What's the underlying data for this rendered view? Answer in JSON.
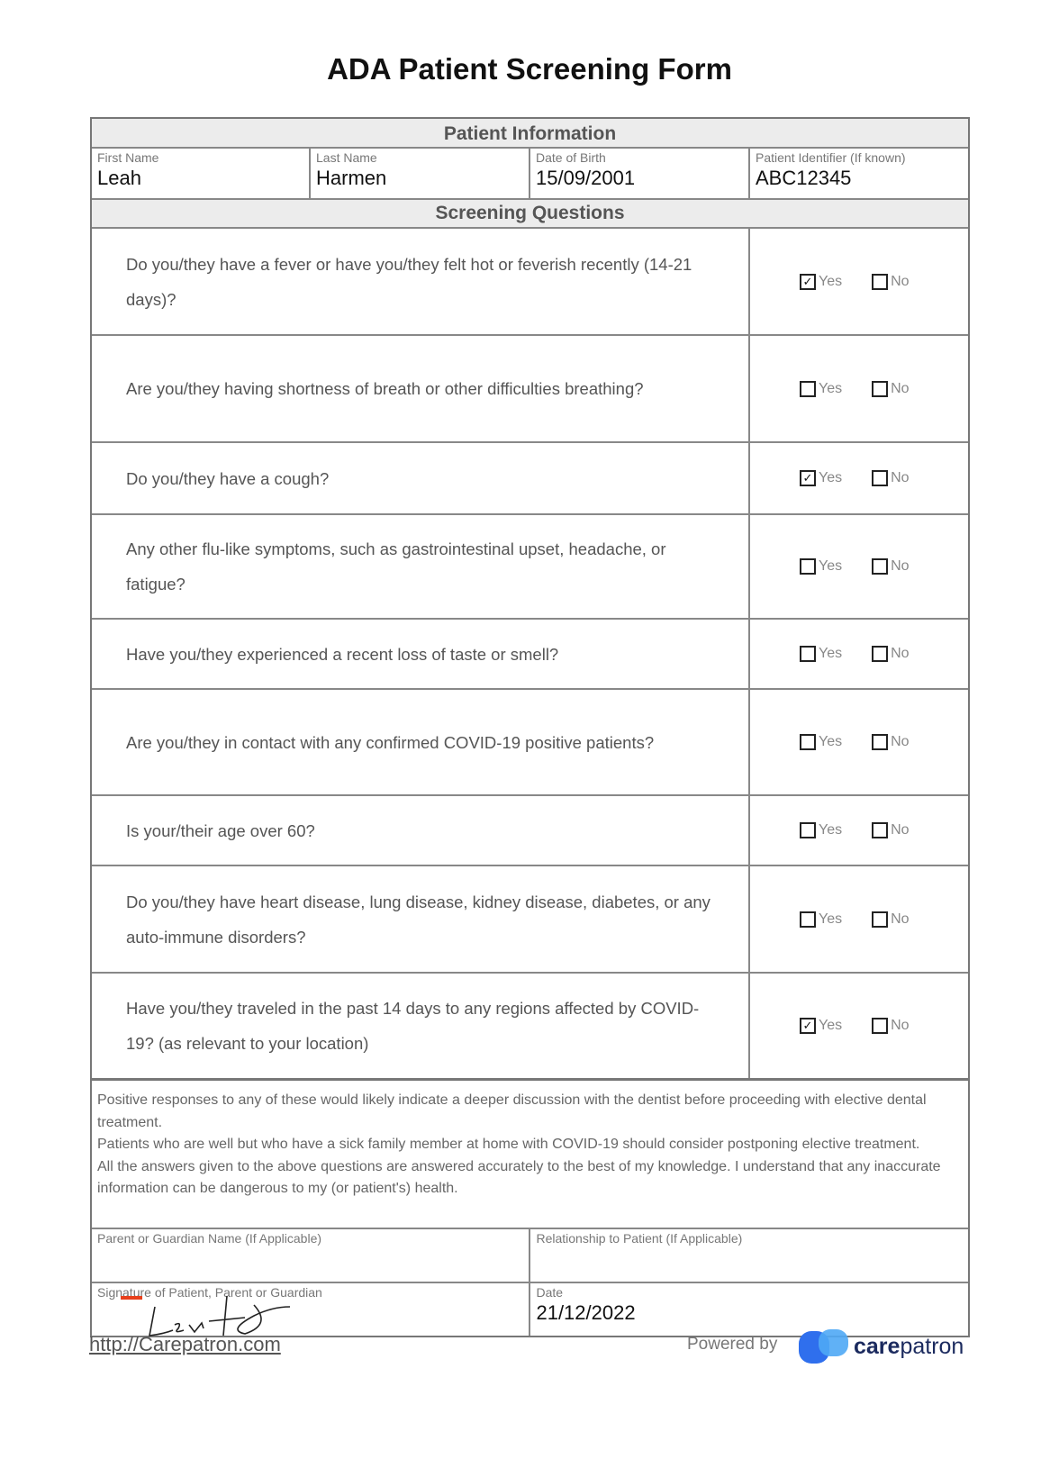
{
  "title": "ADA Patient Screening Form",
  "patient_information": {
    "heading": "Patient Information",
    "fields": [
      {
        "label": "First Name",
        "value": "Leah"
      },
      {
        "label": "Last Name",
        "value": "Harmen"
      },
      {
        "label": "Date of Birth",
        "value": "15/09/2001"
      },
      {
        "label": "Patient Identifier (If known)",
        "value": "ABC12345"
      }
    ]
  },
  "screening": {
    "heading": "Screening Questions",
    "yes_label": "Yes",
    "no_label": "No",
    "questions": [
      {
        "text": "Do you/they have a fever or have you/they felt hot or feverish recently (14-21 days)?",
        "yes": true,
        "no": false
      },
      {
        "text": "Are you/they having shortness of breath or other difficulties breathing?",
        "yes": false,
        "no": false
      },
      {
        "text": "Do you/they have a cough?",
        "yes": true,
        "no": false
      },
      {
        "text": "Any other flu-like symptoms, such as gastrointestinal upset, headache, or fatigue?",
        "yes": false,
        "no": false
      },
      {
        "text": "Have you/they experienced a recent loss of taste or smell?",
        "yes": false,
        "no": false
      },
      {
        "text": "Are you/they in contact with any confirmed COVID-19 positive patients?",
        "yes": false,
        "no": false
      },
      {
        "text": "Is your/their age over 60?",
        "yes": false,
        "no": false
      },
      {
        "text": "Do you/they have heart disease, lung disease, kidney disease, diabetes, or any auto-immune disorders?",
        "yes": false,
        "no": false
      },
      {
        "text": "Have you/they traveled in the past 14 days to any regions affected by COVID-19? (as relevant to your location)",
        "yes": true,
        "no": false
      }
    ]
  },
  "notes": [
    "Positive responses to any of these would likely indicate a deeper discussion with the dentist before proceeding with elective dental treatment.",
    "Patients who are well but who have a sick family member at home with COVID-19 should consider postponing elective treatment.",
    "All the answers given to the above questions are answered accurately to the best of my knowledge. I understand that any inaccurate information can be dangerous to my (or patient's) health."
  ],
  "guardian": {
    "name_label": "Parent or Guardian Name (If Applicable)",
    "name_value": "",
    "relationship_label": "Relationship to Patient (If Applicable)",
    "relationship_value": ""
  },
  "signature": {
    "label": "Signature of Patient, Parent or Guardian",
    "date_label": "Date",
    "date_value": "21/12/2022"
  },
  "footer": {
    "link": "http://Carepatron.com",
    "powered_by": "Powered by",
    "brand_bold": "care",
    "brand_rest": "patron",
    "brand_color": "#2f6fed"
  }
}
